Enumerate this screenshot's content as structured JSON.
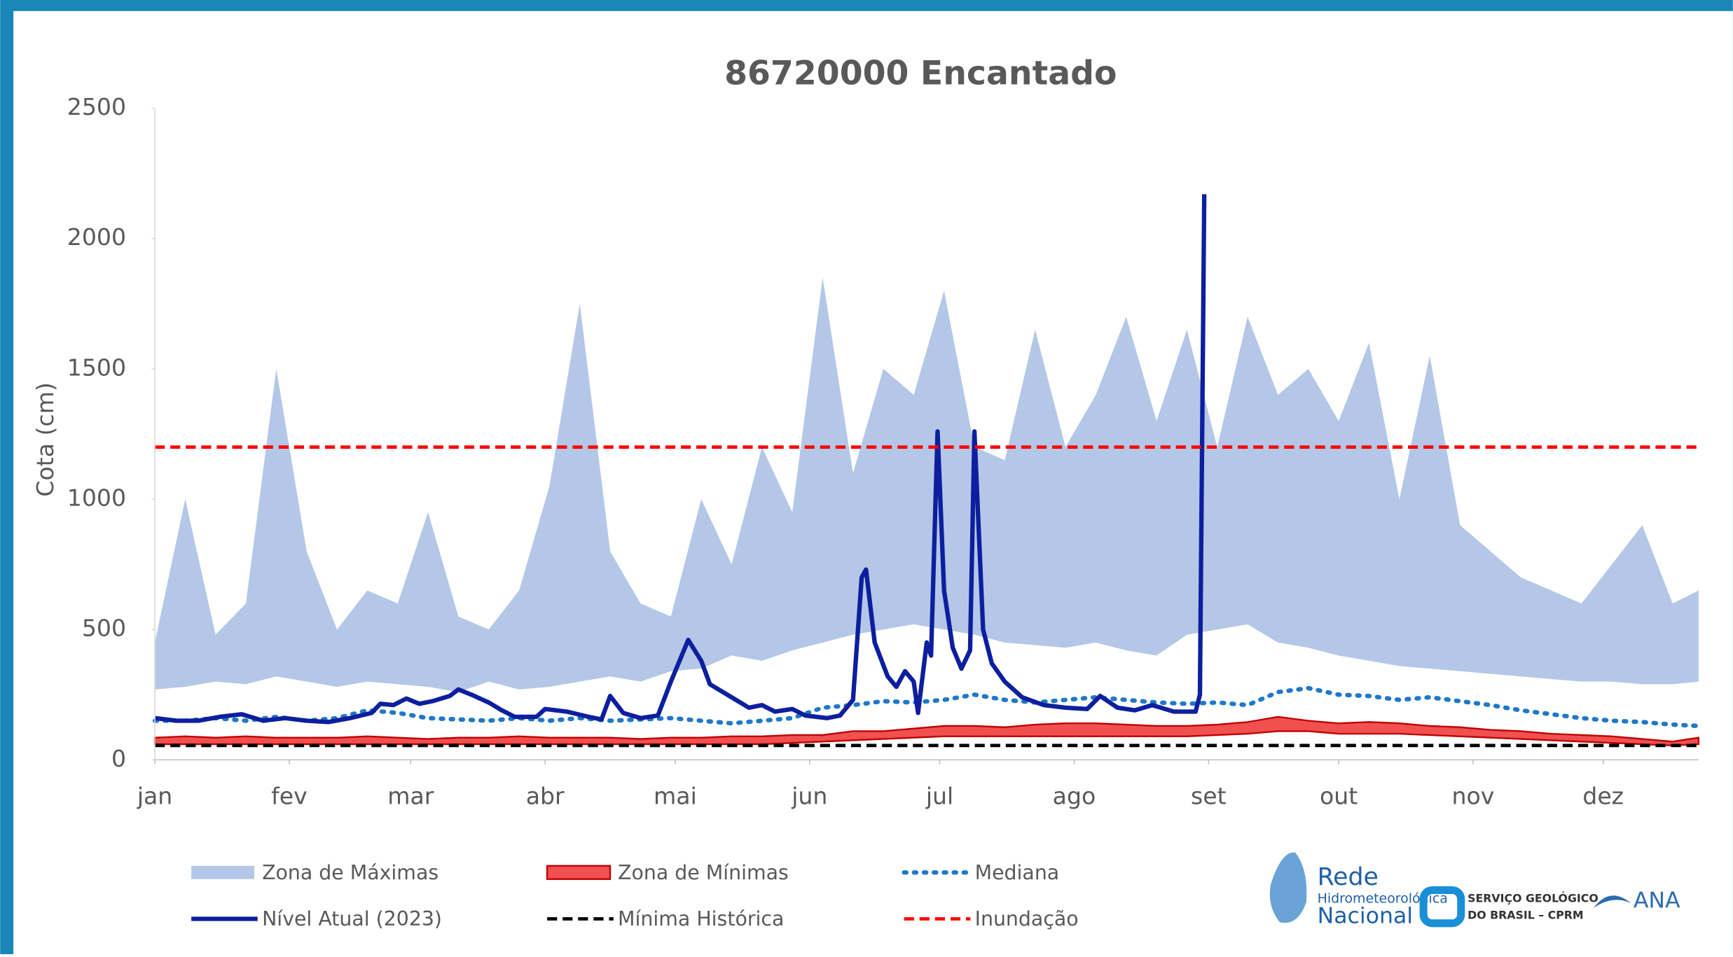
{
  "chart_data": {
    "type": "line",
    "title": "86720000 Encantado",
    "ylabel": "Cota (cm)",
    "xlim": [
      0,
      356
    ],
    "ylim": [
      0,
      2500
    ],
    "yticks": [
      0,
      500,
      1000,
      1500,
      2000,
      2500
    ],
    "xticks": [
      {
        "value": 0,
        "label": "jan"
      },
      {
        "value": 31,
        "label": "fev"
      },
      {
        "value": 59,
        "label": "mar"
      },
      {
        "value": 90,
        "label": "abr"
      },
      {
        "value": 120,
        "label": "mai"
      },
      {
        "value": 151,
        "label": "jun"
      },
      {
        "value": 181,
        "label": "jul"
      },
      {
        "value": 212,
        "label": "ago"
      },
      {
        "value": 243,
        "label": "set"
      },
      {
        "value": 273,
        "label": "out"
      },
      {
        "value": 304,
        "label": "nov"
      },
      {
        "value": 334,
        "label": "dez"
      }
    ],
    "x": [
      0,
      7,
      14,
      21,
      28,
      35,
      42,
      49,
      56,
      63,
      70,
      77,
      84,
      91,
      98,
      105,
      112,
      119,
      126,
      133,
      140,
      147,
      154,
      161,
      168,
      175,
      182,
      189,
      196,
      203,
      210,
      217,
      224,
      231,
      238,
      245,
      252,
      259,
      266,
      273,
      280,
      287,
      294,
      301,
      308,
      315,
      322,
      329,
      336,
      343,
      350,
      356
    ],
    "series": [
      {
        "name": "Zona de Máximas",
        "style": "band",
        "color": "#b4c7e7",
        "values": [
          450,
          1000,
          480,
          600,
          1500,
          800,
          500,
          650,
          600,
          950,
          550,
          500,
          650,
          1050,
          1750,
          800,
          600,
          550,
          1000,
          750,
          1200,
          950,
          1850,
          1100,
          1500,
          1400,
          1800,
          1200,
          1150,
          1650,
          1200,
          1400,
          1700,
          1300,
          1650,
          1200,
          1700,
          1400,
          1500,
          1300,
          1600,
          1000,
          1550,
          900,
          800,
          700,
          650,
          600,
          750,
          900,
          600,
          650
        ],
        "lower": [
          270,
          280,
          300,
          290,
          320,
          300,
          280,
          300,
          290,
          280,
          260,
          300,
          270,
          280,
          300,
          320,
          300,
          340,
          350,
          400,
          380,
          420,
          450,
          480,
          500,
          520,
          500,
          480,
          450,
          440,
          430,
          450,
          420,
          400,
          480,
          500,
          520,
          450,
          430,
          400,
          380,
          360,
          350,
          340,
          330,
          320,
          310,
          300,
          300,
          290,
          290,
          300
        ]
      },
      {
        "name": "Zona de Mínimas",
        "style": "band",
        "color": "#f05050",
        "edge": "#c00000",
        "values": [
          85,
          90,
          85,
          90,
          85,
          85,
          85,
          90,
          85,
          80,
          85,
          85,
          90,
          85,
          85,
          85,
          80,
          85,
          85,
          90,
          90,
          95,
          95,
          110,
          110,
          120,
          130,
          130,
          125,
          135,
          140,
          140,
          135,
          130,
          130,
          135,
          145,
          165,
          150,
          140,
          145,
          140,
          130,
          125,
          115,
          110,
          100,
          95,
          90,
          80,
          70,
          85
        ],
        "lower": [
          60,
          60,
          60,
          60,
          60,
          60,
          60,
          60,
          60,
          60,
          60,
          60,
          60,
          60,
          60,
          60,
          60,
          60,
          60,
          60,
          60,
          65,
          70,
          75,
          80,
          85,
          90,
          90,
          90,
          90,
          90,
          90,
          90,
          90,
          90,
          95,
          100,
          110,
          110,
          100,
          100,
          100,
          95,
          90,
          85,
          80,
          75,
          70,
          65,
          60,
          55,
          60
        ]
      },
      {
        "name": "Mediana",
        "style": "dotted",
        "color": "#1f78c8",
        "values": [
          150,
          150,
          160,
          150,
          165,
          150,
          160,
          190,
          180,
          160,
          155,
          150,
          160,
          150,
          160,
          150,
          155,
          160,
          150,
          140,
          150,
          160,
          200,
          210,
          225,
          220,
          230,
          250,
          230,
          220,
          230,
          240,
          230,
          220,
          215,
          220,
          210,
          260,
          275,
          250,
          245,
          230,
          240,
          225,
          210,
          190,
          175,
          160,
          150,
          145,
          135,
          130
        ]
      },
      {
        "name": "Nível Atual (2023)",
        "style": "solid",
        "color": "#0d1f9e",
        "x": [
          0,
          5,
          10,
          15,
          20,
          25,
          30,
          35,
          40,
          45,
          50,
          52,
          55,
          58,
          61,
          64,
          68,
          70,
          73,
          77,
          80,
          83,
          88,
          90,
          95,
          100,
          103,
          105,
          108,
          112,
          116,
          119,
          123,
          126,
          128,
          133,
          137,
          140,
          143,
          147,
          150,
          155,
          158,
          161,
          163,
          164,
          166,
          169,
          171,
          173,
          175,
          176,
          178,
          179,
          180.5,
          182,
          184,
          186,
          188,
          189,
          191,
          193,
          196,
          200,
          205,
          210,
          215,
          218,
          222,
          226,
          230,
          235,
          240,
          241,
          242
        ],
        "values": [
          160,
          150,
          150,
          165,
          175,
          150,
          160,
          150,
          145,
          160,
          180,
          215,
          210,
          235,
          215,
          225,
          245,
          270,
          250,
          220,
          190,
          165,
          165,
          195,
          185,
          165,
          155,
          245,
          180,
          160,
          170,
          300,
          460,
          380,
          290,
          240,
          200,
          210,
          185,
          195,
          170,
          160,
          170,
          230,
          700,
          730,
          450,
          320,
          280,
          340,
          300,
          180,
          450,
          400,
          1260,
          650,
          430,
          350,
          420,
          1260,
          500,
          370,
          300,
          240,
          210,
          200,
          195,
          245,
          200,
          190,
          210,
          185,
          185,
          250,
          2170
        ]
      },
      {
        "name": "Mínima Histórica",
        "style": "dashed",
        "color": "#000000",
        "value": 55
      },
      {
        "name": "Inundação",
        "style": "dashed",
        "color": "#ff0000",
        "value": 1200
      }
    ]
  },
  "logos": {
    "rede_1": "Rede",
    "rede_2": "Hidrometeorológica",
    "rede_3": "Nacional",
    "sgb_1": "SERVIÇO GEOLÓGICO",
    "sgb_2": "DO BRASIL – CPRM",
    "ana": "ANA"
  }
}
